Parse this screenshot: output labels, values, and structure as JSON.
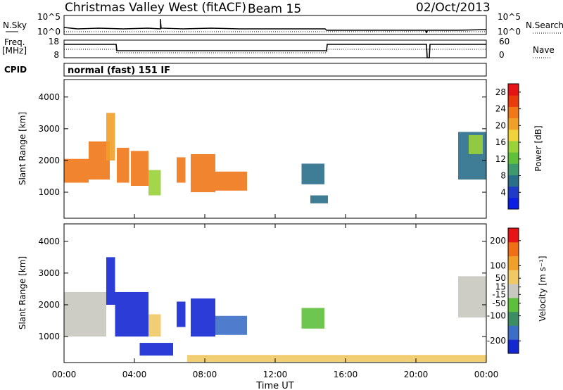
{
  "header": {
    "title": "Christmas Valley West (fitACF)",
    "beam": "Beam 15",
    "date": "02/Oct/2013"
  },
  "noise_panel": {
    "left_label": "N.Sky",
    "left_ticks": [
      "10^5",
      "10^0"
    ],
    "right_label": "N.Search",
    "right_ticks": [
      "10^5",
      "10^0"
    ]
  },
  "freq_panel": {
    "left_label_1": "Freq.",
    "left_label_2": "[MHz]",
    "left_ticks": [
      "18",
      "8"
    ],
    "right_label": "Nave",
    "right_ticks": [
      "60",
      "0"
    ]
  },
  "cpid": {
    "label": "CPID",
    "value": "normal (fast) 151 IF"
  },
  "colors": {
    "power": [
      "#0a1ee6",
      "#1e3cc8",
      "#2a6e8a",
      "#3c9a6e",
      "#60c03a",
      "#9ad23a",
      "#f0d23a",
      "#f0a028",
      "#f07818",
      "#e83c0c",
      "#e61414"
    ],
    "velocity": [
      "#1428d2",
      "#3c6ec8",
      "#3c8c64",
      "#5cc03c",
      "#c8c8c0",
      "#f0c864",
      "#f0a028",
      "#f06e14",
      "#e61414"
    ]
  },
  "chart_data": [
    {
      "type": "heatmap",
      "name": "power",
      "ylabel": "Slant Range [km]",
      "yticks": [
        "1000",
        "2000",
        "3000",
        "4000"
      ],
      "ylim": [
        180,
        4550
      ],
      "colorbar_label": "Power [dB]",
      "colorbar_ticks": [
        "4",
        "8",
        "12",
        "16",
        "20",
        "24",
        "28"
      ],
      "colorbar_range": [
        0,
        30
      ],
      "regions": [
        {
          "t0": 0.0,
          "t1": 1.4,
          "r0": 1300,
          "r1": 2050,
          "v": 24
        },
        {
          "t0": 1.4,
          "t1": 2.6,
          "r0": 1400,
          "r1": 2600,
          "v": 22
        },
        {
          "t0": 2.4,
          "t1": 2.9,
          "r0": 2000,
          "r1": 3500,
          "v": 20
        },
        {
          "t0": 3.0,
          "t1": 3.7,
          "r0": 1300,
          "r1": 2400,
          "v": 24
        },
        {
          "t0": 3.8,
          "t1": 4.8,
          "r0": 1200,
          "r1": 2300,
          "v": 22
        },
        {
          "t0": 4.8,
          "t1": 5.5,
          "r0": 900,
          "r1": 1700,
          "v": 14
        },
        {
          "t0": 6.4,
          "t1": 6.9,
          "r0": 1300,
          "r1": 2100,
          "v": 24
        },
        {
          "t0": 7.2,
          "t1": 8.6,
          "r0": 1000,
          "r1": 2200,
          "v": 22
        },
        {
          "t0": 8.6,
          "t1": 10.4,
          "r0": 1050,
          "r1": 1650,
          "v": 22
        },
        {
          "t0": 13.5,
          "t1": 14.8,
          "r0": 1250,
          "r1": 1900,
          "v": 6
        },
        {
          "t0": 14.0,
          "t1": 15.0,
          "r0": 650,
          "r1": 900,
          "v": 6
        },
        {
          "t0": 22.4,
          "t1": 24.0,
          "r0": 1400,
          "r1": 2900,
          "v": 8
        },
        {
          "t0": 23.0,
          "t1": 23.8,
          "r0": 2200,
          "r1": 2800,
          "v": 16
        }
      ]
    },
    {
      "type": "heatmap",
      "name": "velocity",
      "ylabel": "Slant Range [km]",
      "yticks": [
        "1000",
        "2000",
        "3000",
        "4000"
      ],
      "ylim": [
        180,
        4550
      ],
      "colorbar_label": "Velocity [m s⁻¹]",
      "colorbar_ticks": [
        "200",
        "100",
        "50",
        "15",
        "-15",
        "-50",
        "-100",
        "-200"
      ],
      "colorbar_range": [
        -250,
        250
      ],
      "regions": [
        {
          "t0": 0.0,
          "t1": 2.4,
          "r0": 1000,
          "r1": 2400,
          "v": 0
        },
        {
          "t0": 2.4,
          "t1": 2.9,
          "r0": 2000,
          "r1": 3500,
          "v": -220
        },
        {
          "t0": 2.9,
          "t1": 4.8,
          "r0": 1000,
          "r1": 2400,
          "v": -230
        },
        {
          "t0": 4.8,
          "t1": 5.5,
          "r0": 1000,
          "r1": 1700,
          "v": 40
        },
        {
          "t0": 4.3,
          "t1": 6.2,
          "r0": 400,
          "r1": 800,
          "v": -220
        },
        {
          "t0": 6.4,
          "t1": 6.9,
          "r0": 1300,
          "r1": 2100,
          "v": -230
        },
        {
          "t0": 7.2,
          "t1": 8.6,
          "r0": 1000,
          "r1": 2200,
          "v": -200
        },
        {
          "t0": 8.6,
          "t1": 10.4,
          "r0": 1050,
          "r1": 1650,
          "v": -180
        },
        {
          "t0": 13.5,
          "t1": 14.8,
          "r0": 1250,
          "r1": 1900,
          "v": -60
        },
        {
          "t0": 22.4,
          "t1": 24.0,
          "r0": 1600,
          "r1": 2900,
          "v": 0
        },
        {
          "t0": 7.0,
          "t1": 24.0,
          "r0": 200,
          "r1": 420,
          "v": 30
        }
      ]
    }
  ],
  "xaxis": {
    "ticks": [
      "00:00",
      "04:00",
      "08:00",
      "12:00",
      "16:00",
      "20:00",
      "00:00"
    ],
    "label": "Time UT"
  }
}
